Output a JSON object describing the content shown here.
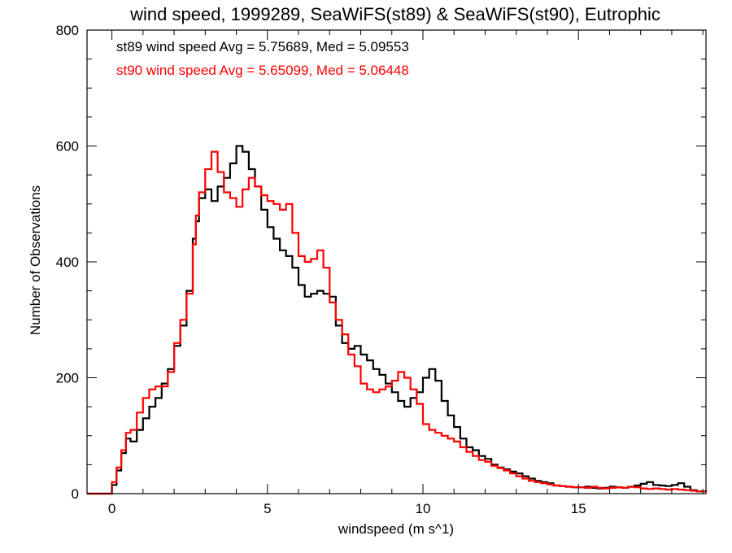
{
  "chart_data": {
    "type": "line",
    "title": "wind speed, 1999289, SeaWiFS(st89) & SeaWiFS(st90), Eutrophic",
    "xlabel": "windspeed (m s^1)",
    "ylabel": "Number of Observations",
    "xlim": [
      -0.8,
      19.1
    ],
    "ylim": [
      0,
      800
    ],
    "x_ticks": [
      0,
      5,
      10,
      15
    ],
    "x_tick_labels": [
      "0",
      "5",
      "10",
      "15"
    ],
    "y_ticks": [
      0,
      200,
      400,
      600,
      800
    ],
    "y_tick_labels": [
      "0",
      "200",
      "400",
      "600",
      "800"
    ],
    "grid": false,
    "annotations": [
      {
        "text": "st89 wind speed Avg = 5.75689, Med = 5.09553",
        "color": "#000000"
      },
      {
        "text": "st90 wind speed Avg = 5.65099, Med = 5.06448",
        "color": "#ff0000"
      }
    ],
    "series": [
      {
        "color": "#000000",
        "x": [
          -0.8,
          -0.05,
          0.0,
          0.15,
          0.3,
          0.45,
          0.6,
          0.8,
          1.0,
          1.2,
          1.4,
          1.6,
          1.8,
          2.0,
          2.2,
          2.4,
          2.6,
          2.7,
          2.8,
          3.0,
          3.2,
          3.4,
          3.6,
          3.8,
          4.0,
          4.2,
          4.4,
          4.6,
          4.8,
          5.0,
          5.2,
          5.4,
          5.6,
          5.8,
          6.0,
          6.2,
          6.4,
          6.6,
          6.8,
          7.0,
          7.2,
          7.4,
          7.6,
          7.8,
          8.0,
          8.2,
          8.4,
          8.6,
          8.8,
          9.0,
          9.2,
          9.4,
          9.6,
          9.8,
          10.0,
          10.2,
          10.4,
          10.6,
          10.8,
          11.0,
          11.2,
          11.4,
          11.6,
          11.8,
          12.0,
          12.2,
          12.4,
          12.6,
          12.8,
          13.0,
          13.2,
          13.4,
          13.6,
          13.8,
          14.0,
          14.2,
          14.4,
          14.6,
          14.8,
          15.0,
          15.2,
          15.4,
          15.6,
          15.8,
          16.0,
          16.2,
          16.4,
          16.6,
          16.8,
          17.0,
          17.2,
          17.4,
          17.6,
          17.8,
          18.0,
          18.2,
          18.4,
          18.6,
          18.8,
          19.1
        ],
        "y": [
          0,
          0,
          15,
          40,
          70,
          95,
          90,
          110,
          130,
          150,
          165,
          190,
          215,
          255,
          290,
          350,
          440,
          470,
          510,
          525,
          505,
          530,
          545,
          570,
          600,
          590,
          560,
          530,
          490,
          460,
          440,
          420,
          410,
          390,
          360,
          340,
          345,
          350,
          345,
          340,
          290,
          260,
          250,
          255,
          240,
          230,
          215,
          205,
          190,
          175,
          160,
          150,
          165,
          175,
          200,
          215,
          195,
          160,
          135,
          115,
          95,
          80,
          75,
          65,
          60,
          50,
          45,
          42,
          38,
          35,
          30,
          26,
          22,
          20,
          18,
          14,
          13,
          12,
          11,
          11,
          12,
          10,
          9,
          10,
          12,
          11,
          10,
          12,
          14,
          17,
          20,
          15,
          14,
          13,
          15,
          18,
          12,
          6,
          4,
          3
        ]
      },
      {
        "color": "#ff0000",
        "x": [
          -0.8,
          -0.05,
          0.0,
          0.15,
          0.3,
          0.45,
          0.6,
          0.8,
          1.0,
          1.2,
          1.4,
          1.6,
          1.8,
          2.0,
          2.2,
          2.4,
          2.6,
          2.7,
          2.8,
          3.0,
          3.2,
          3.4,
          3.6,
          3.8,
          4.0,
          4.2,
          4.4,
          4.6,
          4.8,
          5.0,
          5.2,
          5.4,
          5.6,
          5.8,
          6.0,
          6.2,
          6.4,
          6.6,
          6.8,
          7.0,
          7.2,
          7.4,
          7.6,
          7.8,
          8.0,
          8.2,
          8.4,
          8.6,
          8.8,
          9.0,
          9.2,
          9.4,
          9.6,
          9.8,
          10.0,
          10.2,
          10.4,
          10.6,
          10.8,
          11.0,
          11.2,
          11.4,
          11.6,
          11.8,
          12.0,
          12.2,
          12.4,
          12.6,
          12.8,
          13.0,
          13.2,
          13.4,
          13.6,
          13.8,
          14.0,
          14.2,
          14.4,
          14.6,
          14.8,
          15.0,
          15.2,
          15.4,
          15.6,
          15.8,
          16.0,
          16.2,
          16.4,
          16.6,
          16.8,
          17.0,
          17.2,
          17.4,
          17.6,
          17.8,
          18.0,
          18.2,
          18.4,
          18.6,
          18.8,
          19.1
        ],
        "y": [
          0,
          0,
          20,
          45,
          75,
          105,
          110,
          140,
          165,
          180,
          185,
          185,
          210,
          260,
          300,
          345,
          430,
          480,
          520,
          560,
          590,
          555,
          520,
          510,
          495,
          525,
          545,
          530,
          515,
          505,
          500,
          490,
          500,
          450,
          410,
          400,
          405,
          420,
          390,
          330,
          300,
          275,
          240,
          220,
          190,
          180,
          175,
          180,
          185,
          195,
          210,
          200,
          180,
          155,
          120,
          110,
          105,
          100,
          95,
          90,
          80,
          72,
          65,
          58,
          55,
          48,
          44,
          40,
          35,
          30,
          26,
          22,
          20,
          18,
          16,
          14,
          13,
          12,
          11,
          11,
          10,
          12,
          10,
          9,
          10,
          11,
          10,
          12,
          11,
          9,
          8,
          9,
          8,
          7,
          8,
          7,
          6,
          5,
          4,
          3
        ]
      }
    ]
  }
}
